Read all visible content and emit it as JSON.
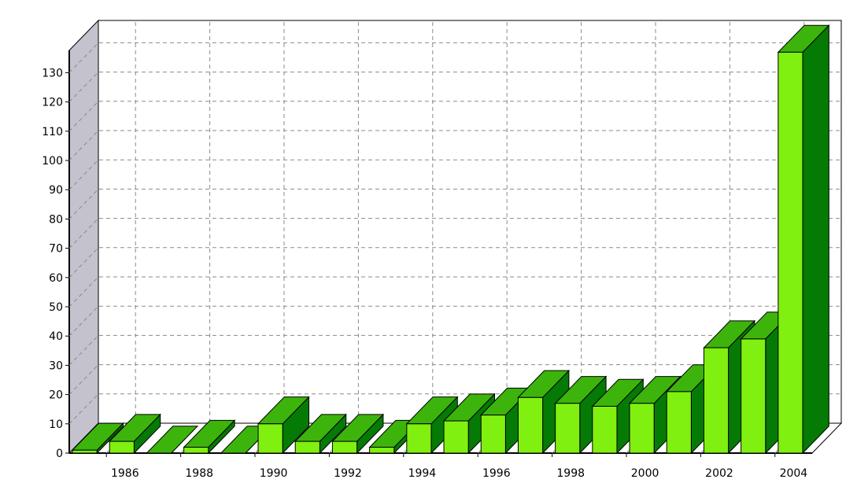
{
  "chart_data": {
    "type": "bar",
    "title": "",
    "xlabel": "",
    "ylabel": "",
    "categories": [
      "1985",
      "1986",
      "1987",
      "1988",
      "1989",
      "1990",
      "1991",
      "1992",
      "1993",
      "1994",
      "1995",
      "1996",
      "1997",
      "1998",
      "1999",
      "2000",
      "2001",
      "2002",
      "2003",
      "2004"
    ],
    "values": [
      1,
      4,
      0,
      2,
      0,
      10,
      4,
      4,
      2,
      10,
      11,
      13,
      19,
      17,
      16,
      17,
      21,
      36,
      39,
      137
    ],
    "x_tick_labels": [
      "1986",
      "1988",
      "1990",
      "1992",
      "1994",
      "1996",
      "1998",
      "2000",
      "2002",
      "2004"
    ],
    "y_tick_labels": [
      "0",
      "10",
      "20",
      "30",
      "40",
      "50",
      "60",
      "70",
      "80",
      "90",
      "100",
      "110",
      "120",
      "130"
    ],
    "ylim": [
      0,
      137
    ],
    "grid": true,
    "legend": "none",
    "style": "3d",
    "colors": {
      "bar_front": "#80f010",
      "bar_top": "#3cb40c",
      "bar_side": "#057a05",
      "left_wall": "#c4c2cc",
      "grid": "#8a8a8a"
    }
  }
}
